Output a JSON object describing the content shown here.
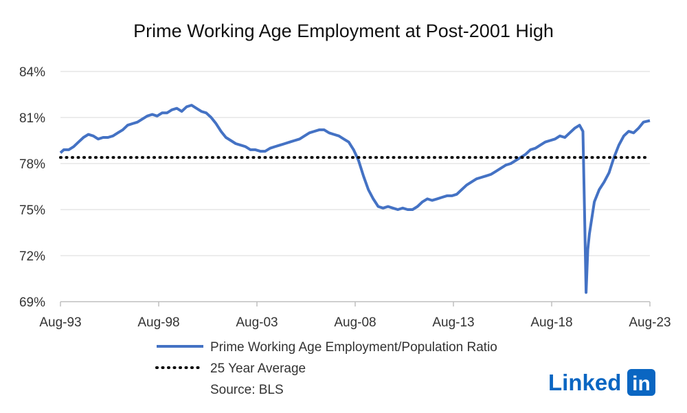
{
  "chart_data": {
    "type": "line",
    "title": "Prime Working Age Employment at Post-2001 High",
    "xlabel": "",
    "ylabel": "",
    "x_ticks": [
      "Aug-93",
      "Aug-98",
      "Aug-03",
      "Aug-08",
      "Aug-13",
      "Aug-18",
      "Aug-23"
    ],
    "y_ticks": [
      "84%",
      "81%",
      "78%",
      "75%",
      "72%",
      "69%"
    ],
    "ylim": [
      69,
      84
    ],
    "xlim": [
      1993.58,
      2023.58
    ],
    "grid": true,
    "legend_position": "bottom",
    "series": [
      {
        "name": "Prime Working Age Employment/Population Ratio",
        "color": "#4472c4",
        "style": "solid",
        "points": [
          [
            1993.58,
            78.7
          ],
          [
            1993.75,
            78.9
          ],
          [
            1994.0,
            78.9
          ],
          [
            1994.25,
            79.1
          ],
          [
            1994.5,
            79.4
          ],
          [
            1994.75,
            79.7
          ],
          [
            1995.0,
            79.9
          ],
          [
            1995.25,
            79.8
          ],
          [
            1995.5,
            79.6
          ],
          [
            1995.75,
            79.7
          ],
          [
            1996.0,
            79.7
          ],
          [
            1996.25,
            79.8
          ],
          [
            1996.5,
            80.0
          ],
          [
            1996.75,
            80.2
          ],
          [
            1997.0,
            80.5
          ],
          [
            1997.25,
            80.6
          ],
          [
            1997.5,
            80.7
          ],
          [
            1997.75,
            80.9
          ],
          [
            1998.0,
            81.1
          ],
          [
            1998.25,
            81.2
          ],
          [
            1998.5,
            81.1
          ],
          [
            1998.75,
            81.3
          ],
          [
            1999.0,
            81.3
          ],
          [
            1999.25,
            81.5
          ],
          [
            1999.5,
            81.6
          ],
          [
            1999.75,
            81.4
          ],
          [
            2000.0,
            81.7
          ],
          [
            2000.25,
            81.8
          ],
          [
            2000.5,
            81.6
          ],
          [
            2000.75,
            81.4
          ],
          [
            2001.0,
            81.3
          ],
          [
            2001.25,
            81.0
          ],
          [
            2001.5,
            80.6
          ],
          [
            2001.75,
            80.1
          ],
          [
            2002.0,
            79.7
          ],
          [
            2002.25,
            79.5
          ],
          [
            2002.5,
            79.3
          ],
          [
            2002.75,
            79.2
          ],
          [
            2003.0,
            79.1
          ],
          [
            2003.25,
            78.9
          ],
          [
            2003.5,
            78.9
          ],
          [
            2003.75,
            78.8
          ],
          [
            2004.0,
            78.8
          ],
          [
            2004.25,
            79.0
          ],
          [
            2004.5,
            79.1
          ],
          [
            2004.75,
            79.2
          ],
          [
            2005.0,
            79.3
          ],
          [
            2005.25,
            79.4
          ],
          [
            2005.5,
            79.5
          ],
          [
            2005.75,
            79.6
          ],
          [
            2006.0,
            79.8
          ],
          [
            2006.25,
            80.0
          ],
          [
            2006.5,
            80.1
          ],
          [
            2006.75,
            80.2
          ],
          [
            2007.0,
            80.2
          ],
          [
            2007.25,
            80.0
          ],
          [
            2007.5,
            79.9
          ],
          [
            2007.75,
            79.8
          ],
          [
            2008.0,
            79.6
          ],
          [
            2008.25,
            79.4
          ],
          [
            2008.5,
            78.9
          ],
          [
            2008.75,
            78.2
          ],
          [
            2009.0,
            77.2
          ],
          [
            2009.25,
            76.3
          ],
          [
            2009.5,
            75.7
          ],
          [
            2009.75,
            75.2
          ],
          [
            2010.0,
            75.1
          ],
          [
            2010.25,
            75.2
          ],
          [
            2010.5,
            75.1
          ],
          [
            2010.75,
            75.0
          ],
          [
            2011.0,
            75.1
          ],
          [
            2011.25,
            75.0
          ],
          [
            2011.5,
            75.0
          ],
          [
            2011.75,
            75.2
          ],
          [
            2012.0,
            75.5
          ],
          [
            2012.25,
            75.7
          ],
          [
            2012.5,
            75.6
          ],
          [
            2012.75,
            75.7
          ],
          [
            2013.0,
            75.8
          ],
          [
            2013.25,
            75.9
          ],
          [
            2013.5,
            75.9
          ],
          [
            2013.75,
            76.0
          ],
          [
            2014.0,
            76.3
          ],
          [
            2014.25,
            76.6
          ],
          [
            2014.5,
            76.8
          ],
          [
            2014.75,
            77.0
          ],
          [
            2015.0,
            77.1
          ],
          [
            2015.25,
            77.2
          ],
          [
            2015.5,
            77.3
          ],
          [
            2015.75,
            77.5
          ],
          [
            2016.0,
            77.7
          ],
          [
            2016.25,
            77.9
          ],
          [
            2016.5,
            78.0
          ],
          [
            2016.75,
            78.2
          ],
          [
            2017.0,
            78.4
          ],
          [
            2017.25,
            78.6
          ],
          [
            2017.5,
            78.9
          ],
          [
            2017.75,
            79.0
          ],
          [
            2018.0,
            79.2
          ],
          [
            2018.25,
            79.4
          ],
          [
            2018.5,
            79.5
          ],
          [
            2018.75,
            79.6
          ],
          [
            2019.0,
            79.8
          ],
          [
            2019.25,
            79.7
          ],
          [
            2019.5,
            80.0
          ],
          [
            2019.75,
            80.3
          ],
          [
            2020.0,
            80.5
          ],
          [
            2020.17,
            80.1
          ],
          [
            2020.25,
            75.0
          ],
          [
            2020.33,
            69.6
          ],
          [
            2020.42,
            72.4
          ],
          [
            2020.5,
            73.4
          ],
          [
            2020.75,
            75.5
          ],
          [
            2021.0,
            76.3
          ],
          [
            2021.25,
            76.8
          ],
          [
            2021.5,
            77.4
          ],
          [
            2021.75,
            78.4
          ],
          [
            2022.0,
            79.2
          ],
          [
            2022.25,
            79.8
          ],
          [
            2022.5,
            80.1
          ],
          [
            2022.75,
            80.0
          ],
          [
            2023.0,
            80.3
          ],
          [
            2023.25,
            80.7
          ],
          [
            2023.58,
            80.8
          ]
        ]
      },
      {
        "name": "25 Year Average",
        "color": "#000000",
        "style": "dotted",
        "points": [
          [
            1993.58,
            78.4
          ],
          [
            2023.58,
            78.4
          ]
        ]
      }
    ],
    "source_note": "Source: BLS"
  },
  "logo": {
    "text": "Linked",
    "badge": "in",
    "color": "#0a66c2"
  },
  "colors": {
    "grid": "#d9d9d9",
    "axis": "#bfbfbf"
  }
}
